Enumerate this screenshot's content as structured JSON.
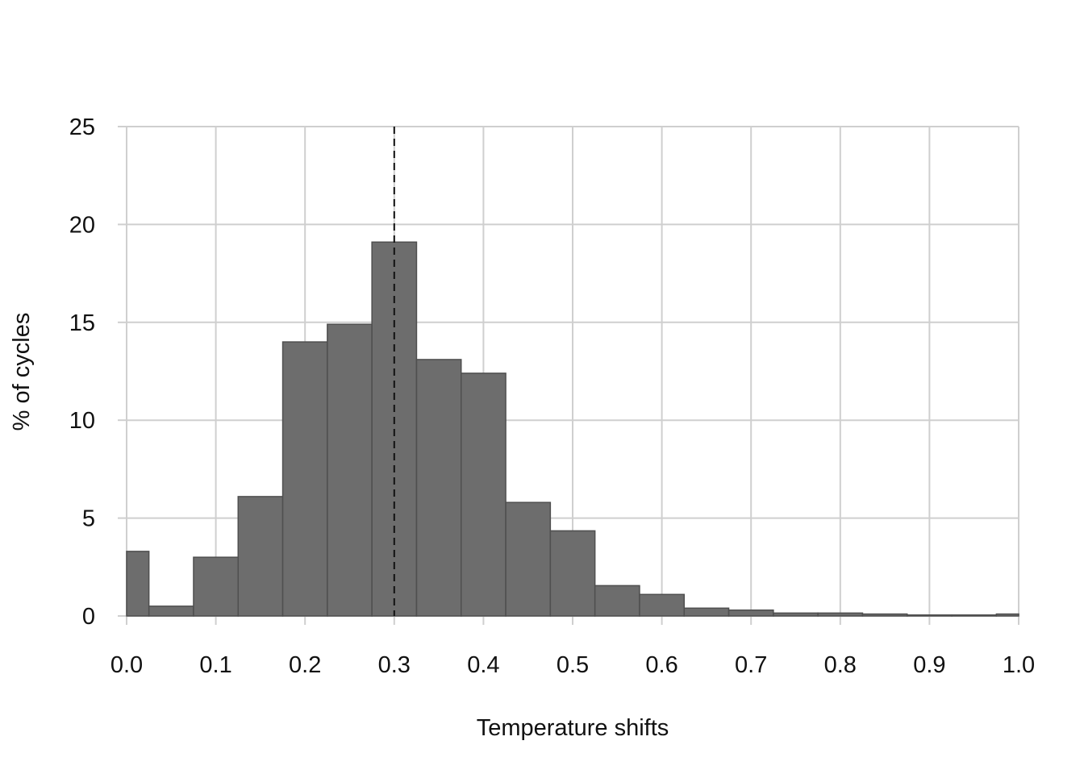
{
  "chart_data": {
    "type": "bar",
    "xlabel": "Temperature shifts",
    "ylabel": "% of cycles",
    "xlim": [
      0.0,
      1.0
    ],
    "ylim": [
      0,
      25
    ],
    "xticks": [
      "0.0",
      "0.1",
      "0.2",
      "0.3",
      "0.4",
      "0.5",
      "0.6",
      "0.7",
      "0.8",
      "0.9",
      "1.0"
    ],
    "yticks": [
      "0",
      "5",
      "10",
      "15",
      "20",
      "25"
    ],
    "grid": true,
    "bar_color": "#6d6d6d",
    "bar_edge_color": "#4f4f4f",
    "grid_color": "#cfcfcf",
    "reference_line": {
      "x": 0.3,
      "style": "dashed",
      "color": "#111111"
    },
    "bins": [
      {
        "x0": 0.0,
        "x1": 0.025,
        "value": 3.3
      },
      {
        "x0": 0.025,
        "x1": 0.075,
        "value": 0.5
      },
      {
        "x0": 0.075,
        "x1": 0.125,
        "value": 3.0
      },
      {
        "x0": 0.125,
        "x1": 0.175,
        "value": 6.1
      },
      {
        "x0": 0.175,
        "x1": 0.225,
        "value": 14.0
      },
      {
        "x0": 0.225,
        "x1": 0.275,
        "value": 14.9
      },
      {
        "x0": 0.275,
        "x1": 0.325,
        "value": 19.1
      },
      {
        "x0": 0.325,
        "x1": 0.375,
        "value": 13.1
      },
      {
        "x0": 0.375,
        "x1": 0.425,
        "value": 12.4
      },
      {
        "x0": 0.425,
        "x1": 0.475,
        "value": 5.8
      },
      {
        "x0": 0.475,
        "x1": 0.525,
        "value": 4.35
      },
      {
        "x0": 0.525,
        "x1": 0.575,
        "value": 1.55
      },
      {
        "x0": 0.575,
        "x1": 0.625,
        "value": 1.1
      },
      {
        "x0": 0.625,
        "x1": 0.675,
        "value": 0.4
      },
      {
        "x0": 0.675,
        "x1": 0.725,
        "value": 0.3
      },
      {
        "x0": 0.725,
        "x1": 0.775,
        "value": 0.15
      },
      {
        "x0": 0.775,
        "x1": 0.825,
        "value": 0.15
      },
      {
        "x0": 0.825,
        "x1": 0.875,
        "value": 0.1
      },
      {
        "x0": 0.875,
        "x1": 0.925,
        "value": 0.05
      },
      {
        "x0": 0.925,
        "x1": 0.975,
        "value": 0.05
      },
      {
        "x0": 0.975,
        "x1": 1.0,
        "value": 0.1
      }
    ]
  }
}
